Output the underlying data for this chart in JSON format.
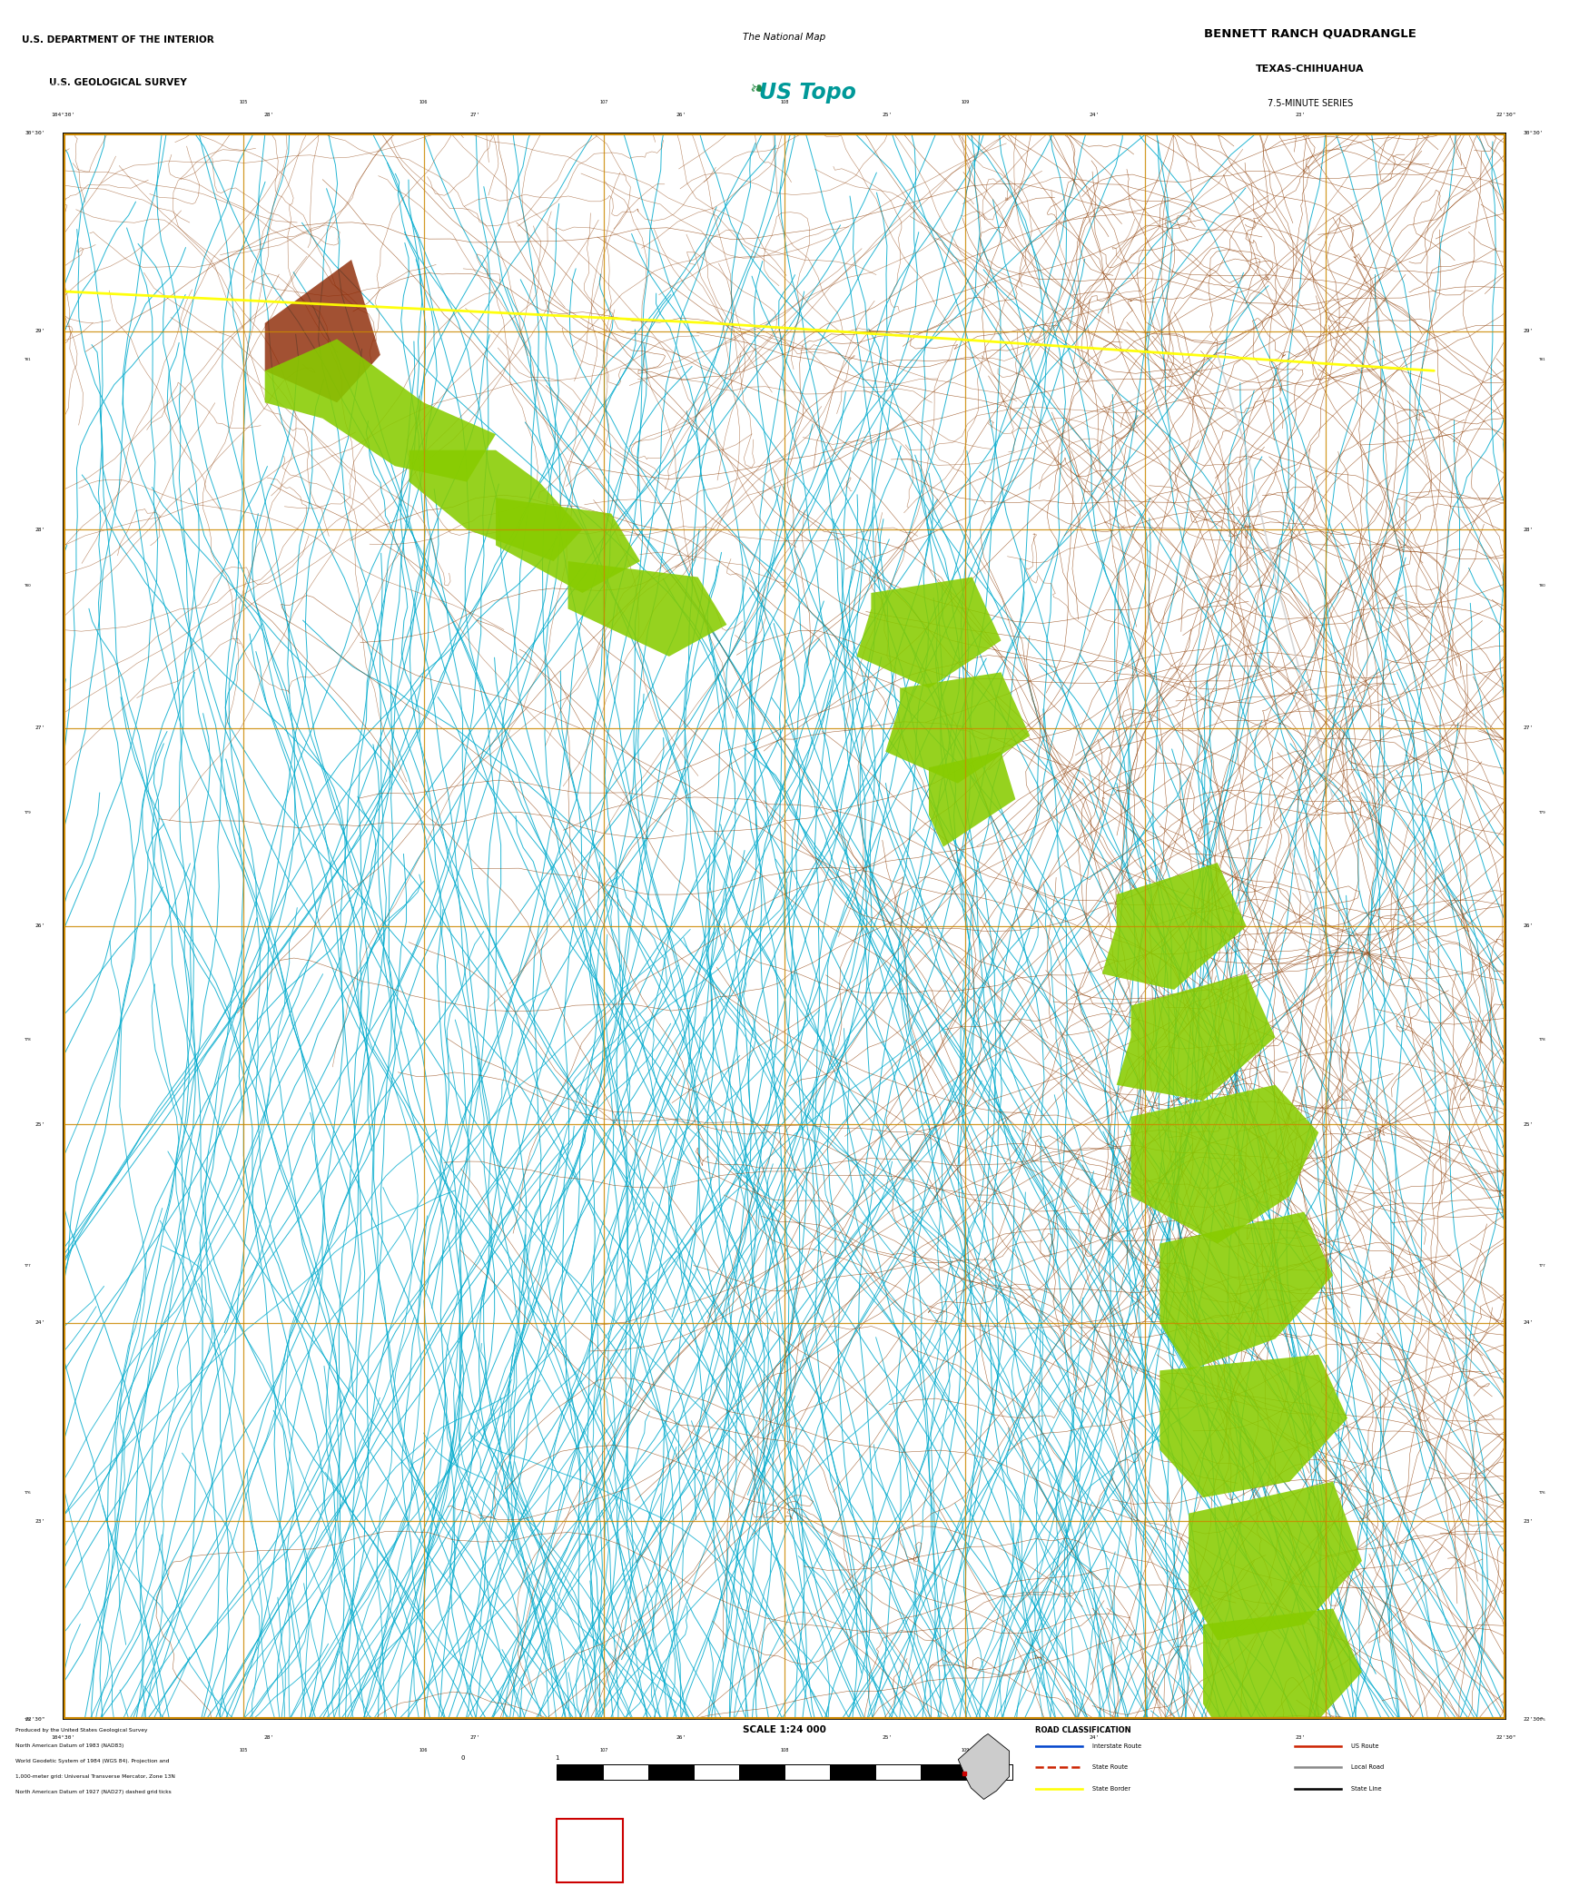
{
  "title": "BENNETT RANCH QUADRANGLE",
  "subtitle1": "TEXAS-CHIHUAHUA",
  "subtitle2": "7.5-MINUTE SERIES",
  "agency1": "U.S. DEPARTMENT OF THE INTERIOR",
  "agency2": "U.S. GEOLOGICAL SURVEY",
  "scale_text": "SCALE 1:24 000",
  "map_bg": "#000000",
  "header_bg": "#ffffff",
  "footer_bg": "#ffffff",
  "black_bar_bg": "#000000",
  "grid_color": "#cc8800",
  "contour_color": "#8B3A00",
  "water_color": "#00aacc",
  "veg_color": "#88cc00",
  "state_border_color": "#ffff00",
  "fig_width": 17.28,
  "fig_height": 20.88,
  "legend_title": "ROAD CLASSIFICATION"
}
